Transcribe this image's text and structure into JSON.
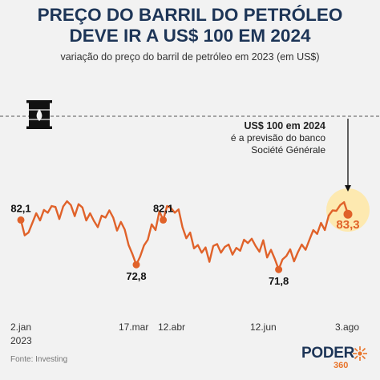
{
  "header": {
    "title_line1": "PREÇO DO BARRIL DO PETRÓLEO",
    "title_line2": "DEVE IR A US$ 100 EM 2024",
    "subtitle": "variação do preço do barril de petróleo em 2023 (em US$)"
  },
  "annotation": {
    "line1": "US$ 100 em 2024",
    "line2": "é a previsão do banco",
    "line3": "Société Générale"
  },
  "footer": {
    "source": "Fonte: Investing",
    "logo_word": "PODER",
    "logo_num": "360"
  },
  "icons": {
    "barrel": "oil-barrel-icon"
  },
  "colors": {
    "line": "#e0622a",
    "title": "#1d3557",
    "highlight": "#fde9b0"
  },
  "chart_data": {
    "type": "line",
    "x_tick_labels": [
      "2.jan",
      "17.mar",
      "12.abr",
      "12.jun",
      "3.ago"
    ],
    "x_year_label": "2023",
    "ylim": [
      70,
      102
    ],
    "reference_line": 100,
    "series": [
      {
        "values": [
          82.1,
          78.9,
          79.5,
          81.5,
          83.5,
          82.0,
          84.2,
          83.6,
          85.0,
          84.8,
          82.3,
          84.9,
          86.0,
          85.2,
          82.9,
          85.4,
          84.7,
          82.0,
          83.5,
          81.9,
          80.6,
          83.0,
          82.6,
          84.1,
          82.6,
          79.9,
          81.7,
          80.1,
          76.9,
          75.0,
          72.8,
          74.5,
          76.8,
          78.0,
          81.2,
          80.0,
          83.9,
          82.1,
          85.0,
          84.6,
          83.6,
          84.3,
          80.6,
          78.3,
          79.5,
          76.2,
          76.9,
          75.3,
          76.4,
          73.4,
          76.7,
          77.1,
          75.3,
          76.5,
          77.0,
          74.9,
          76.3,
          75.7,
          78.0,
          77.3,
          78.2,
          76.7,
          75.5,
          77.9,
          74.3,
          75.9,
          74.0,
          71.8,
          73.9,
          74.6,
          76.0,
          73.5,
          75.4,
          77.0,
          75.9,
          78.0,
          80.0,
          79.2,
          81.5,
          80.0,
          83.0,
          84.1,
          84.0,
          85.2,
          85.8,
          83.3
        ],
        "labeled_points": [
          {
            "index": 0,
            "value": 82.1,
            "label": "82,1"
          },
          {
            "index": 30,
            "value": 72.8,
            "label": "72,8"
          },
          {
            "index": 37,
            "value": 82.1,
            "label": "82,1"
          },
          {
            "index": 67,
            "value": 71.8,
            "label": "71,8"
          },
          {
            "index": 85,
            "value": 83.3,
            "label": "83,3"
          }
        ]
      }
    ]
  }
}
